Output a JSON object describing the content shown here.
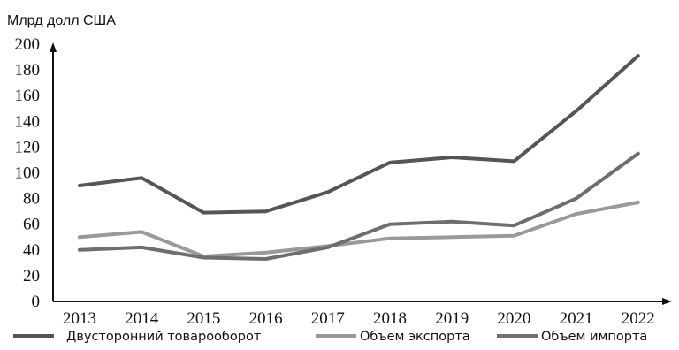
{
  "chart_data": {
    "type": "line",
    "title": "",
    "ylabel": "Млрд долл США",
    "xlabel": "",
    "x": [
      "2013",
      "2014",
      "2015",
      "2016",
      "2017",
      "2018",
      "2019",
      "2020",
      "2021",
      "2022"
    ],
    "yticks": [
      "0",
      "20",
      "40",
      "60",
      "80",
      "100",
      "120",
      "140",
      "160",
      "180",
      "200"
    ],
    "ylim": [
      0,
      200
    ],
    "grid": false,
    "legend_position": "bottom",
    "series": [
      {
        "name": "Двусторонний товарооборот",
        "color": "#555555",
        "values": [
          90,
          96,
          69,
          70,
          85,
          108,
          112,
          109,
          148,
          191
        ]
      },
      {
        "name": "Объем экспорта",
        "color": "#999999",
        "values": [
          50,
          54,
          35,
          38,
          43,
          49,
          50,
          51,
          68,
          77
        ]
      },
      {
        "name": "Объем импорта",
        "color": "#6e6e6e",
        "values": [
          40,
          42,
          34,
          33,
          42,
          60,
          62,
          59,
          80,
          115
        ]
      }
    ]
  }
}
